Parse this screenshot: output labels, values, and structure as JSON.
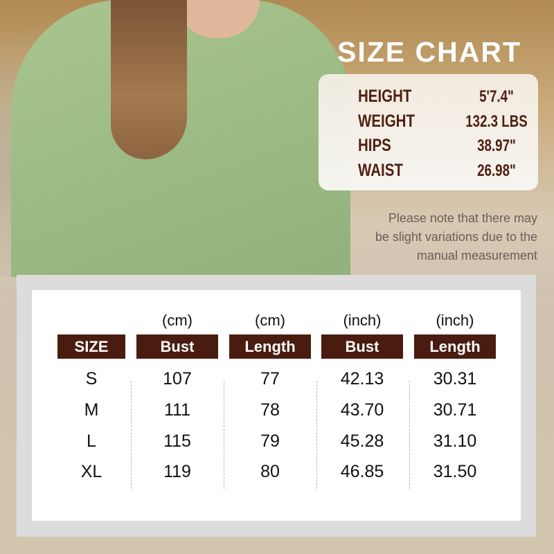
{
  "title": "SIZE CHART",
  "model": [
    {
      "label": "HEIGHT",
      "value": "5'7.4\""
    },
    {
      "label": "WEIGHT",
      "value": "132.3 LBS"
    },
    {
      "label": "HIPS",
      "value": "38.97\""
    },
    {
      "label": "WAIST",
      "value": "26.98\""
    }
  ],
  "note": [
    "Please note that there may",
    "be slight variations due to the",
    "manual measurement"
  ],
  "colors": {
    "header": "#4a1c10",
    "model_text": "#4f1e12"
  },
  "table": {
    "units": [
      "",
      "(cm)",
      "(cm)",
      "(inch)",
      "(inch)"
    ],
    "headers": [
      "SIZE",
      "Bust",
      "Length",
      "Bust",
      "Length"
    ],
    "rows": [
      [
        "S",
        "107",
        "77",
        "42.13",
        "30.31"
      ],
      [
        "M",
        "111",
        "78",
        "43.70",
        "30.71"
      ],
      [
        "L",
        "115",
        "79",
        "45.28",
        "31.10"
      ],
      [
        "XL",
        "119",
        "80",
        "46.85",
        "31.50"
      ]
    ]
  }
}
